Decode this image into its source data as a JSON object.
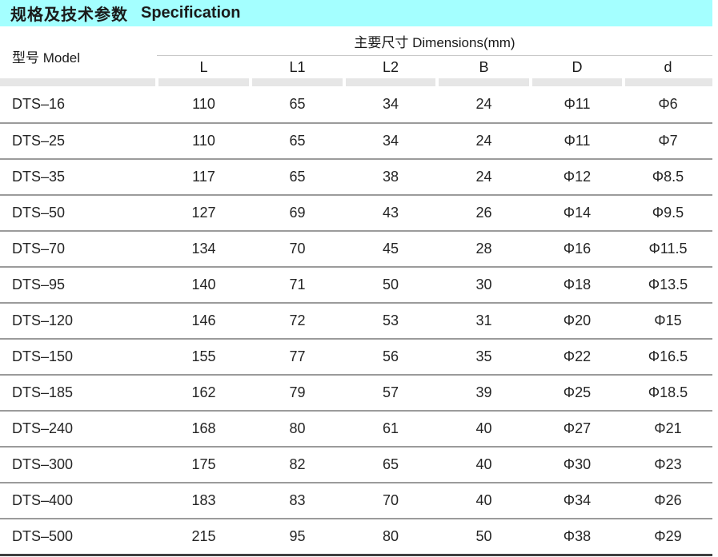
{
  "title": {
    "zh": "规格及技术参数",
    "en": "Specification"
  },
  "table": {
    "model_header": "型号 Model",
    "dims_header": "主要尺寸  Dimensions(mm)",
    "columns": [
      "L",
      "L1",
      "L2",
      "B",
      "D",
      "d"
    ],
    "rows": [
      {
        "model": "DTS–16",
        "dims": [
          "110",
          "65",
          "34",
          "24",
          "Φ11",
          "Φ6"
        ]
      },
      {
        "model": "DTS–25",
        "dims": [
          "110",
          "65",
          "34",
          "24",
          "Φ11",
          "Φ7"
        ]
      },
      {
        "model": "DTS–35",
        "dims": [
          "117",
          "65",
          "38",
          "24",
          "Φ12",
          "Φ8.5"
        ]
      },
      {
        "model": "DTS–50",
        "dims": [
          "127",
          "69",
          "43",
          "26",
          "Φ14",
          "Φ9.5"
        ]
      },
      {
        "model": "DTS–70",
        "dims": [
          "134",
          "70",
          "45",
          "28",
          "Φ16",
          "Φ11.5"
        ]
      },
      {
        "model": "DTS–95",
        "dims": [
          "140",
          "71",
          "50",
          "30",
          "Φ18",
          "Φ13.5"
        ]
      },
      {
        "model": "DTS–120",
        "dims": [
          "146",
          "72",
          "53",
          "31",
          "Φ20",
          "Φ15"
        ]
      },
      {
        "model": "DTS–150",
        "dims": [
          "155",
          "77",
          "56",
          "35",
          "Φ22",
          "Φ16.5"
        ]
      },
      {
        "model": "DTS–185",
        "dims": [
          "162",
          "79",
          "57",
          "39",
          "Φ25",
          "Φ18.5"
        ]
      },
      {
        "model": "DTS–240",
        "dims": [
          "168",
          "80",
          "61",
          "40",
          "Φ27",
          "Φ21"
        ]
      },
      {
        "model": "DTS–300",
        "dims": [
          "175",
          "82",
          "65",
          "40",
          "Φ30",
          "Φ23"
        ]
      },
      {
        "model": "DTS–400",
        "dims": [
          "183",
          "83",
          "70",
          "40",
          "Φ34",
          "Φ26"
        ]
      },
      {
        "model": "DTS–500",
        "dims": [
          "215",
          "95",
          "80",
          "50",
          "Φ38",
          "Φ29"
        ]
      }
    ]
  },
  "colors": {
    "title_bar_bg": "#a4ffff",
    "band_gray": "#e6e6e6",
    "row_separator": "#9b9b9b",
    "bottom_border": "#404040"
  }
}
